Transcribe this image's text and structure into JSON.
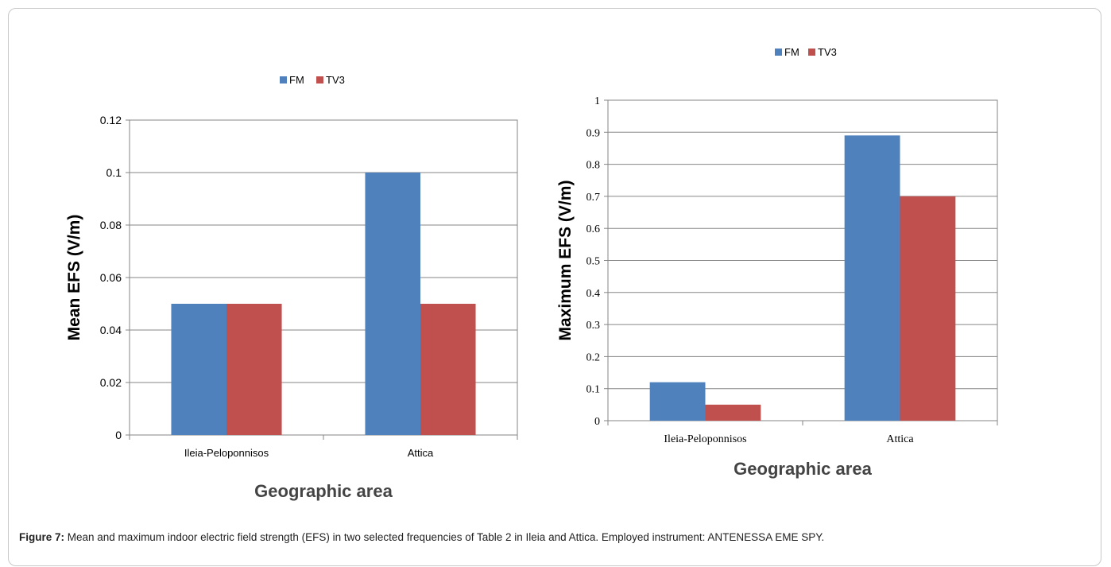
{
  "chart_data": [
    {
      "type": "bar",
      "categories": [
        "Ileia-Peloponnisos",
        "Attica"
      ],
      "series": [
        {
          "name": "FM",
          "values": [
            0.05,
            0.1
          ],
          "color": "#4f81bd"
        },
        {
          "name": "TV3",
          "values": [
            0.05,
            0.05
          ],
          "color": "#c0504d"
        }
      ],
      "ylabel": "Mean EFS (V/m)",
      "xlabel": "Geographic area",
      "ylim": [
        0,
        0.12
      ],
      "yticks": [
        "0",
        "0.02",
        "0.04",
        "0.06",
        "0.08",
        "0.1",
        "0.12"
      ],
      "grid": true,
      "legend": "top"
    },
    {
      "type": "bar",
      "categories": [
        "Ileia-Peloponnisos",
        "Attica"
      ],
      "series": [
        {
          "name": "FM",
          "values": [
            0.12,
            0.89
          ],
          "color": "#4f81bd"
        },
        {
          "name": "TV3",
          "values": [
            0.05,
            0.7
          ],
          "color": "#c0504d"
        }
      ],
      "ylabel": "Maximum EFS (V/m)",
      "xlabel": "Geographic area",
      "ylim": [
        0,
        1
      ],
      "yticks": [
        "0",
        "0.1",
        "0.2",
        "0.3",
        "0.4",
        "0.5",
        "0.6",
        "0.7",
        "0.8",
        "0.9",
        "1"
      ],
      "grid": true,
      "legend": "top"
    }
  ],
  "caption": {
    "label": "Figure 7:",
    "text": " Mean and maximum indoor electric field strength (EFS) in two selected frequencies of Table 2 in Ileia and Attica. Employed instrument: ANTENESSA EME SPY."
  }
}
